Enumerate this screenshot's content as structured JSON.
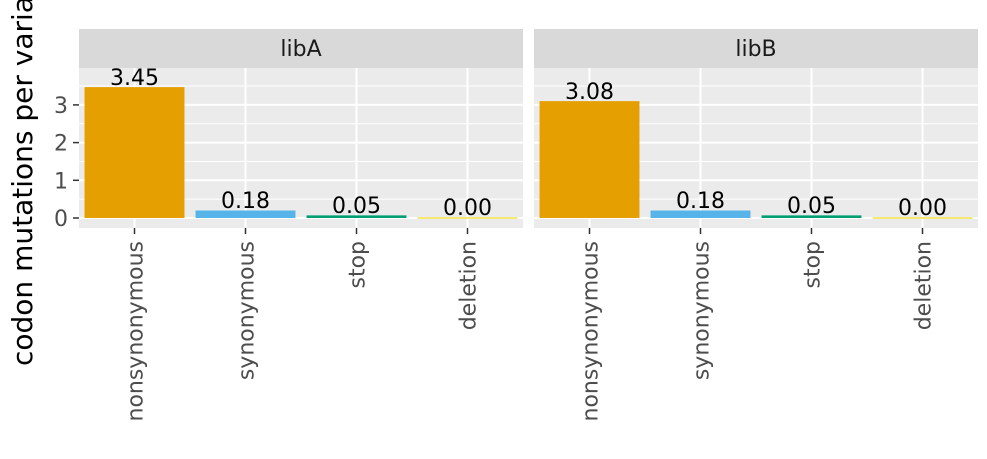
{
  "chart_data": {
    "type": "bar",
    "ylabel": "codon mutations per variant",
    "xlabel": "",
    "ylim": [
      0,
      3.45
    ],
    "y_ticks": [
      0,
      1,
      2,
      3
    ],
    "categories": [
      "nonsynonymous",
      "synonymous",
      "stop",
      "deletion"
    ],
    "category_colors": {
      "nonsynonymous": "#E69F00",
      "synonymous": "#56B4E9",
      "stop": "#009E73",
      "deletion": "#F0E442"
    },
    "grid": true,
    "panel_background": "#EBEBEB",
    "strip_background": "#D9D9D9",
    "facets": [
      {
        "name": "libA",
        "values": [
          3.45,
          0.18,
          0.05,
          0.0
        ],
        "labels": [
          "3.45",
          "0.18",
          "0.05",
          "0.00"
        ]
      },
      {
        "name": "libB",
        "values": [
          3.08,
          0.18,
          0.05,
          0.0
        ],
        "labels": [
          "3.08",
          "0.18",
          "0.05",
          "0.00"
        ]
      }
    ]
  }
}
